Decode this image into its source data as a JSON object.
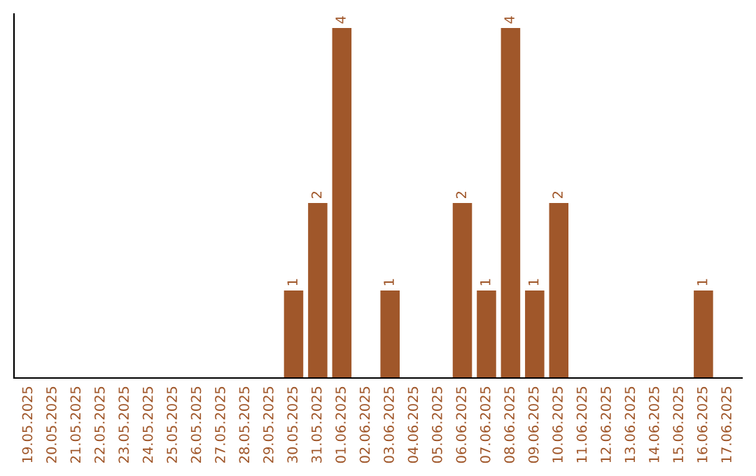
{
  "chart_data": {
    "type": "bar",
    "categories": [
      "19.05.2025",
      "20.05.2025",
      "21.05.2025",
      "22.05.2025",
      "23.05.2025",
      "24.05.2025",
      "25.05.2025",
      "26.05.2025",
      "27.05.2025",
      "28.05.2025",
      "29.05.2025",
      "30.05.2025",
      "31.05.2025",
      "01.06.2025",
      "02.06.2025",
      "03.06.2025",
      "04.06.2025",
      "05.06.2025",
      "06.06.2025",
      "07.06.2025",
      "08.06.2025",
      "09.06.2025",
      "10.06.2025",
      "11.06.2025",
      "12.06.2025",
      "13.06.2025",
      "14.06.2025",
      "15.06.2025",
      "16.06.2025",
      "17.06.2025"
    ],
    "values": [
      null,
      null,
      null,
      null,
      null,
      null,
      null,
      null,
      null,
      null,
      null,
      1,
      2,
      4,
      null,
      1,
      null,
      null,
      2,
      1,
      4,
      1,
      2,
      null,
      null,
      null,
      null,
      null,
      1,
      null
    ],
    "data_labels": true,
    "color": "#a0572a",
    "tick_labels": "x",
    "grid": false,
    "legend": false
  }
}
